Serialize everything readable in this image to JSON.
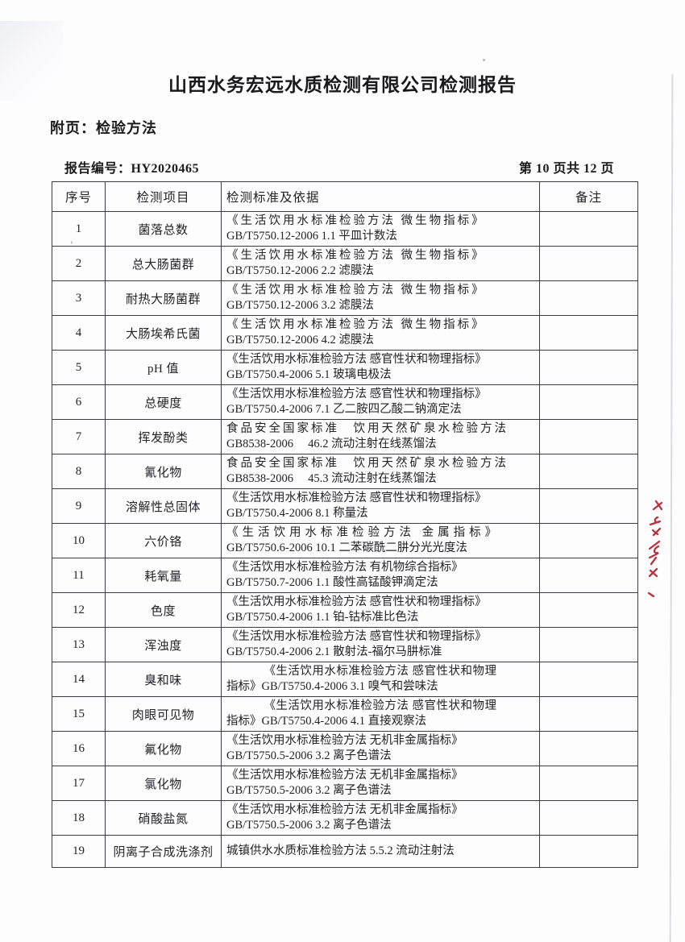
{
  "page": {
    "title": "山西水务宏远水质检测有限公司检测报告",
    "attachment_label": "附页：检验方法",
    "report_number": "报告编号：HY2020465",
    "page_indicator": "第 10 页共 12 页"
  },
  "colors": {
    "text": "#1d1d20",
    "table_border": "#3b3c42",
    "red_mark": "#bb3140",
    "paper": "#fdfdfe"
  },
  "annotations": {
    "red_mark_name": "red-handwriting-mark"
  },
  "table": {
    "headers": [
      "序号",
      "检测项目",
      "检测标准及依据",
      "备注"
    ],
    "rows": [
      {
        "no": "1",
        "item": "菌落总数",
        "remark": "",
        "standard": [
          {
            "text": "《生活饮用水标准检验方法 微生物指标》",
            "spacing": "wide"
          },
          {
            "text": "GB/T5750.12-2006  1.1 平皿计数法",
            "spacing": "normal"
          }
        ]
      },
      {
        "no": "2",
        "item": "总大肠菌群",
        "remark": "",
        "standard": [
          {
            "text": "《生活饮用水标准检验方法 微生物指标》",
            "spacing": "wide"
          },
          {
            "text": "GB/T5750.12-2006  2.2 滤膜法",
            "spacing": "normal"
          }
        ]
      },
      {
        "no": "3",
        "item": "耐热大肠菌群",
        "remark": "",
        "standard": [
          {
            "text": "《生活饮用水标准检验方法 微生物指标》",
            "spacing": "wide"
          },
          {
            "text": "GB/T5750.12-2006  3.2 滤膜法",
            "spacing": "normal"
          }
        ]
      },
      {
        "no": "4",
        "item": "大肠埃希氏菌",
        "remark": "",
        "standard": [
          {
            "text": "《生活饮用水标准检验方法 微生物指标》",
            "spacing": "wide"
          },
          {
            "text": "GB/T5750.12-2006  4.2 滤膜法",
            "spacing": "normal"
          }
        ]
      },
      {
        "no": "5",
        "item": "pH 值",
        "remark": "",
        "standard": [
          {
            "text": "《生活饮用水标准检验方法 感官性状和物理指标》",
            "spacing": "normal"
          },
          {
            "text": "GB/T5750.4-2006  5.1 玻璃电极法",
            "spacing": "normal"
          }
        ]
      },
      {
        "no": "6",
        "item": "总硬度",
        "remark": "",
        "standard": [
          {
            "text": "《生活饮用水标准检验方法 感官性状和物理指标》",
            "spacing": "normal"
          },
          {
            "text": "GB/T5750.4-2006  7.1 乙二胺四乙酸二钠滴定法",
            "spacing": "normal"
          }
        ]
      },
      {
        "no": "7",
        "item": "挥发酚类",
        "remark": "",
        "standard": [
          {
            "text": "食品安全国家标准　饮用天然矿泉水检验方法",
            "spacing": "wide"
          },
          {
            "text": "GB8538-2006　 46.2 流动注射在线蒸馏法",
            "spacing": "normal"
          }
        ]
      },
      {
        "no": "8",
        "item": "氰化物",
        "remark": "",
        "standard": [
          {
            "text": "食品安全国家标准　饮用天然矿泉水检验方法",
            "spacing": "wide"
          },
          {
            "text": "GB8538-2006　 45.3 流动注射在线蒸馏法",
            "spacing": "normal"
          }
        ]
      },
      {
        "no": "9",
        "item": "溶解性总固体",
        "remark": "",
        "standard": [
          {
            "text": "《生活饮用水标准检验方法 感官性状和物理指标》",
            "spacing": "normal"
          },
          {
            "text": "GB/T5750.4-2006  8.1 称量法",
            "spacing": "normal"
          }
        ]
      },
      {
        "no": "10",
        "item": "六价铬",
        "remark": "",
        "standard": [
          {
            "text": "《生活饮用水标准检验方法 金属指标》",
            "spacing": "wider"
          },
          {
            "text": "GB/T5750.6-2006  10.1 二苯碳酰二肼分光光度法",
            "spacing": "normal"
          }
        ]
      },
      {
        "no": "11",
        "item": "耗氧量",
        "remark": "",
        "standard": [
          {
            "text": "《生活饮用水标准检验方法 有机物综合指标》",
            "spacing": "normal"
          },
          {
            "text": "GB/T5750.7-2006  1.1 酸性高锰酸钾滴定法",
            "spacing": "normal"
          }
        ]
      },
      {
        "no": "12",
        "item": "色度",
        "remark": "",
        "standard": [
          {
            "text": "《生活饮用水标准检验方法 感官性状和物理指标》",
            "spacing": "normal"
          },
          {
            "text": "GB/T5750.4-2006  1.1 铂-钴标准比色法",
            "spacing": "normal"
          }
        ]
      },
      {
        "no": "13",
        "item": "浑浊度",
        "remark": "",
        "standard": [
          {
            "text": "《生活饮用水标准检验方法 感官性状和物理指标》",
            "spacing": "normal"
          },
          {
            "text": "GB/T5750.4-2006  2.1 散射法-福尔马肼标准",
            "spacing": "normal"
          }
        ]
      },
      {
        "no": "14",
        "item": "臭和味",
        "remark": "",
        "standard": [
          {
            "text": "《生活饮用水标准检验方法 感官性状和物理",
            "spacing": "center"
          },
          {
            "text": "指标》GB/T5750.4-2006 3.1 嗅气和尝味法",
            "spacing": "normal"
          }
        ]
      },
      {
        "no": "15",
        "item": "肉眼可见物",
        "remark": "",
        "standard": [
          {
            "text": "《生活饮用水标准检验方法 感官性状和物理",
            "spacing": "center"
          },
          {
            "text": "指标》GB/T5750.4-2006 4.1 直接观察法",
            "spacing": "normal"
          }
        ]
      },
      {
        "no": "16",
        "item": "氟化物",
        "remark": "",
        "standard": [
          {
            "text": "《生活饮用水标准检验方法 无机非金属指标》",
            "spacing": "normal"
          },
          {
            "text": "GB/T5750.5-2006  3.2 离子色谱法",
            "spacing": "normal"
          }
        ]
      },
      {
        "no": "17",
        "item": "氯化物",
        "remark": "",
        "standard": [
          {
            "text": "《生活饮用水标准检验方法 无机非金属指标》",
            "spacing": "normal"
          },
          {
            "text": "GB/T5750.5-2006  3.2 离子色谱法",
            "spacing": "normal"
          }
        ]
      },
      {
        "no": "18",
        "item": "硝酸盐氮",
        "remark": "",
        "standard": [
          {
            "text": "《生活饮用水标准检验方法 无机非金属指标》",
            "spacing": "normal"
          },
          {
            "text": "GB/T5750.5-2006  3.2 离子色谱法",
            "spacing": "normal"
          }
        ]
      },
      {
        "no": "19",
        "item": "阴离子合成洗涤剂",
        "remark": "",
        "standard": [
          {
            "text": "城镇供水水质标准检验方法 5.5.2  流动注射法",
            "spacing": "normal"
          }
        ]
      }
    ]
  }
}
